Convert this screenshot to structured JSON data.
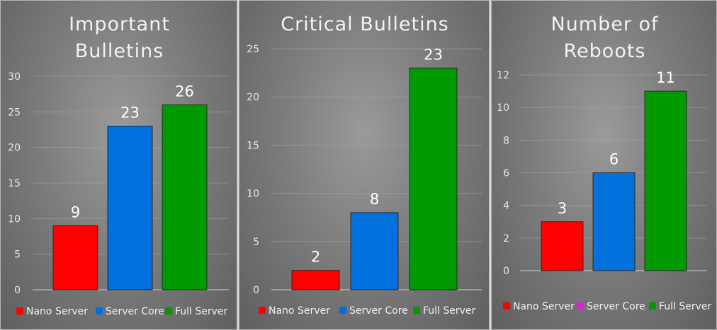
{
  "chart_data": [
    {
      "type": "bar",
      "title": "Important Bulletins",
      "title_lines": [
        "Important",
        "Bulletins"
      ],
      "categories": [
        "Nano Server",
        "Server Core",
        "Full Server"
      ],
      "values": [
        9,
        23,
        26
      ],
      "colors": [
        "#ff0000",
        "#0070dd",
        "#009900"
      ],
      "ylim": [
        0,
        30
      ],
      "yticks": [
        0,
        5,
        10,
        15,
        20,
        25,
        30
      ],
      "legend": [
        "Nano Server",
        "Server Core",
        "Full Server"
      ],
      "legend_colors": [
        "#ff0000",
        "#0070dd",
        "#009900"
      ],
      "legend_position": "bottom",
      "grid": true,
      "xlabel": "",
      "ylabel": ""
    },
    {
      "type": "bar",
      "title": "Critical  Bulletins",
      "title_lines": [
        "Critical  Bulletins"
      ],
      "categories": [
        "Nano Server",
        "Server Core",
        "Full Server"
      ],
      "values": [
        2,
        8,
        23
      ],
      "colors": [
        "#ff0000",
        "#0070dd",
        "#009900"
      ],
      "ylim": [
        0,
        25
      ],
      "yticks": [
        0,
        5,
        10,
        15,
        20,
        25
      ],
      "legend": [
        "Nano Server",
        "Server Core",
        "Full Server"
      ],
      "legend_colors": [
        "#ff0000",
        "#0070dd",
        "#009900"
      ],
      "legend_position": "bottom",
      "grid": true,
      "xlabel": "",
      "ylabel": ""
    },
    {
      "type": "bar",
      "title": "Number of Reboots",
      "title_lines": [
        "Number  of",
        "Reboots"
      ],
      "categories": [
        "Nano Server",
        "Server Core",
        "Full Server"
      ],
      "values": [
        3,
        6,
        11
      ],
      "colors": [
        "#ff0000",
        "#0070dd",
        "#009900"
      ],
      "ylim": [
        0,
        12
      ],
      "yticks": [
        0,
        2,
        4,
        6,
        8,
        10,
        12
      ],
      "legend": [
        "Nano Server",
        "Server Core",
        "Full Server"
      ],
      "legend_colors": [
        "#ff0000",
        "#e020d0",
        "#009900"
      ],
      "legend_position": "bottom",
      "grid": true,
      "xlabel": "",
      "ylabel": ""
    }
  ]
}
